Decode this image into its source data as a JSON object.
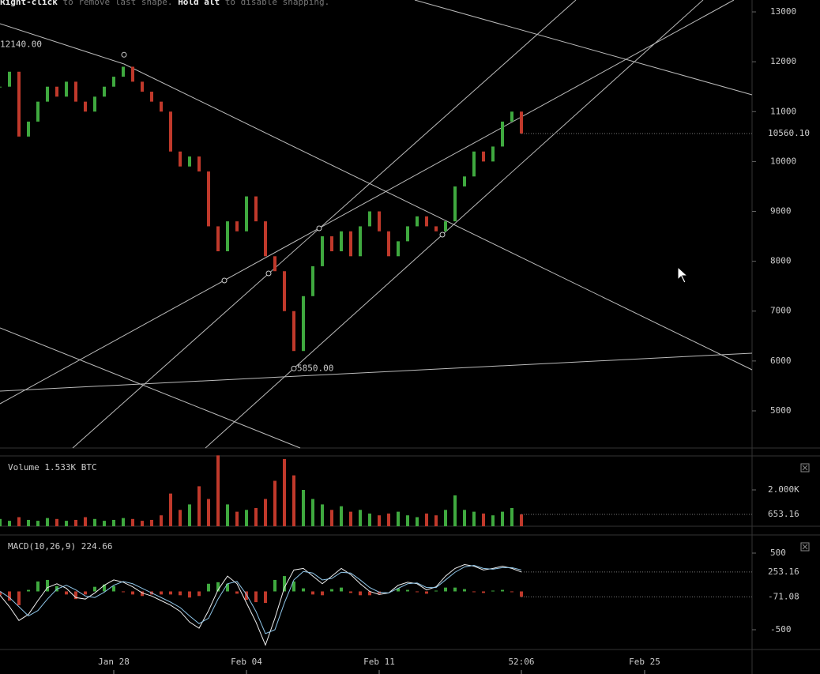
{
  "hint": {
    "parts": [
      "Right-click",
      " to remove last shape. ",
      "Hold alt",
      " to disable snapping."
    ]
  },
  "price": {
    "closes": [
      11500,
      11800,
      10500,
      10800,
      11200,
      11500,
      11300,
      11600,
      11200,
      11000,
      11300,
      11500,
      11700,
      11900,
      11600,
      11400,
      11200,
      11000,
      10200,
      9900,
      10100,
      9800,
      8700,
      8200,
      8800,
      8600,
      9300,
      8800,
      8100,
      7800,
      7000,
      6200,
      7300,
      7900,
      8500,
      8200,
      8600,
      8100,
      8700,
      9000,
      8600,
      8100,
      8400,
      8700,
      8900,
      8700,
      8600,
      8800,
      9500,
      9700,
      10200,
      10000,
      10300,
      10800,
      11000,
      10560.1
    ],
    "ylim": [
      4255,
      13238
    ],
    "yticks": [
      5000,
      6000,
      7000,
      8000,
      9000,
      10000,
      11000,
      12000,
      13000
    ],
    "last": {
      "value": 10560.1,
      "label": "10560.10"
    },
    "annotations": [
      {
        "value": 12140,
        "label": "12140.00"
      },
      {
        "value": 5850,
        "label": "5850.00"
      }
    ]
  },
  "volume": {
    "title": "Volume",
    "reading": "1.533K BTC",
    "values": [
      400,
      300,
      500,
      350,
      300,
      450,
      400,
      300,
      350,
      500,
      400,
      300,
      350,
      450,
      400,
      300,
      350,
      600,
      1800,
      900,
      1200,
      2200,
      1500,
      3900,
      1200,
      800,
      900,
      1000,
      1500,
      2500,
      3700,
      2800,
      2000,
      1500,
      1200,
      900,
      1100,
      800,
      900,
      700,
      600,
      700,
      800,
      600,
      500,
      700,
      600,
      900,
      1700,
      900,
      800,
      700,
      600,
      800,
      1000,
      653.16
    ],
    "ylim": [
      0,
      3870
    ],
    "yticks": [
      {
        "value": 2000,
        "label": "2.000K"
      }
    ],
    "last": 653.16
  },
  "macd": {
    "title": "MACD(10,26,9)",
    "reading": 224.66,
    "line": [
      -50,
      -200,
      -380,
      -300,
      -120,
      50,
      100,
      40,
      -80,
      -100,
      -20,
      80,
      150,
      120,
      60,
      -20,
      -60,
      -120,
      -180,
      -260,
      -400,
      -480,
      -250,
      20,
      200,
      100,
      -150,
      -400,
      -700,
      -350,
      50,
      280,
      300,
      200,
      100,
      200,
      300,
      220,
      100,
      0,
      -40,
      -20,
      80,
      120,
      100,
      20,
      60,
      200,
      300,
      350,
      330,
      280,
      300,
      330,
      300,
      253.16
    ],
    "signal": [
      0,
      -80,
      -200,
      -320,
      -250,
      -100,
      30,
      80,
      20,
      -60,
      -80,
      -10,
      80,
      130,
      100,
      40,
      -20,
      -80,
      -140,
      -210,
      -320,
      -420,
      -350,
      -100,
      100,
      130,
      -40,
      -260,
      -550,
      -500,
      -150,
      150,
      260,
      240,
      150,
      170,
      250,
      240,
      150,
      50,
      -10,
      -20,
      40,
      100,
      110,
      50,
      50,
      150,
      250,
      320,
      340,
      300,
      290,
      310,
      310,
      280
    ],
    "histogram": [
      -50,
      -120,
      -180,
      20,
      130,
      150,
      70,
      -40,
      -100,
      -40,
      60,
      90,
      70,
      -10,
      -40,
      -60,
      -40,
      -40,
      -40,
      -50,
      -80,
      -60,
      100,
      120,
      100,
      -30,
      -110,
      -140,
      -150,
      150,
      200,
      130,
      40,
      -40,
      -50,
      30,
      50,
      -20,
      -50,
      -50,
      -30,
      0,
      40,
      20,
      -10,
      -30,
      10,
      50,
      50,
      30,
      -10,
      -20,
      10,
      20,
      -10,
      -71.08
    ],
    "ylim": [
      -758,
      737
    ],
    "yticks": [
      500,
      -500
    ],
    "last_line": 253.16,
    "last_hist": -71.08
  },
  "x_axis": {
    "labels": [
      "Jan 28",
      "Feb 04",
      "Feb 11",
      "52:06",
      "Feb 25"
    ]
  }
}
